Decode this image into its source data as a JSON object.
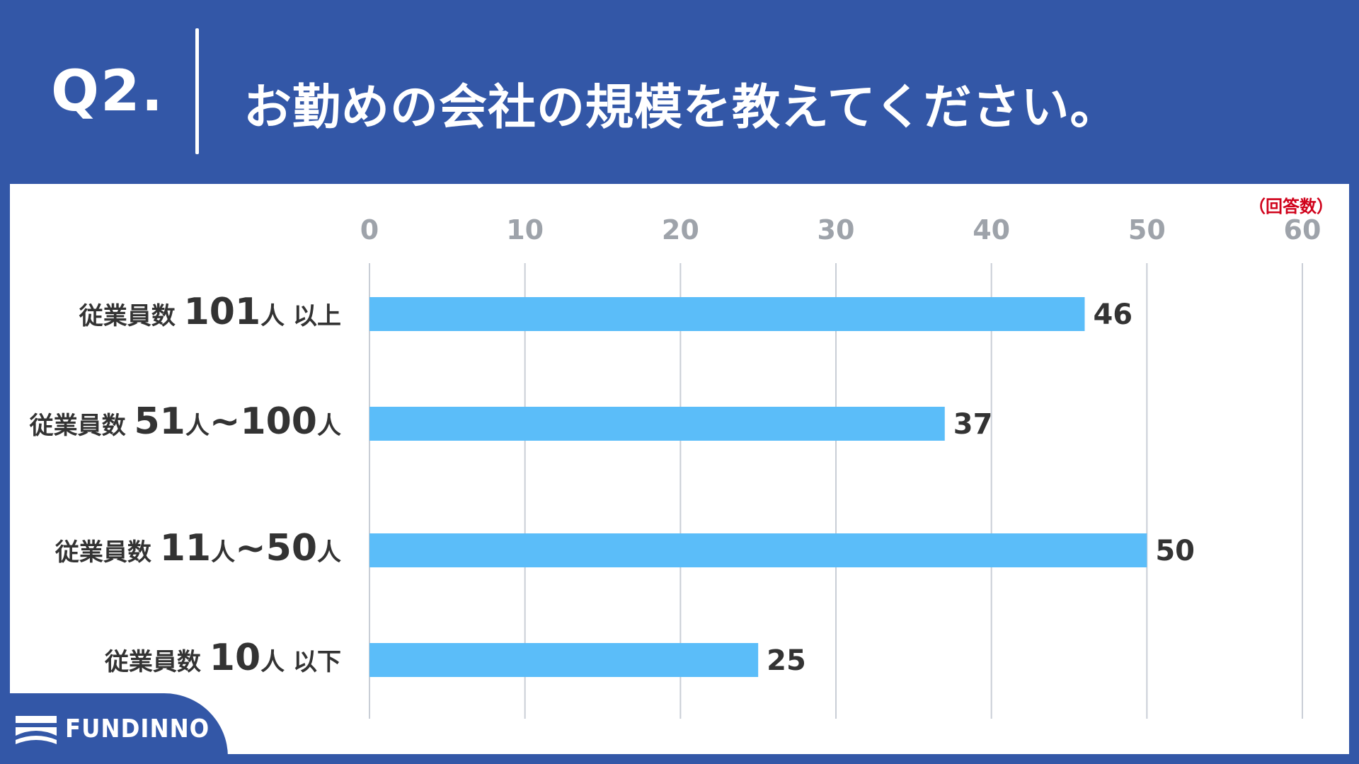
{
  "header": {
    "question_number": "Q2.",
    "title": "お勤めの会社の規模を教えてください。"
  },
  "unit_label": "（回答数）",
  "logo": {
    "text": "FUNDINNO"
  },
  "colors": {
    "background": "#3357a7",
    "bar": "#5bbdf9",
    "grid": "#c9ced6",
    "tick": "#9ea3aa",
    "label": "#333333",
    "unit": "#d0021b"
  },
  "chart_data": {
    "type": "bar",
    "orientation": "horizontal",
    "categories": [
      [
        {
          "t": "従業員数 ",
          "s": "n"
        },
        {
          "t": "101",
          "s": "b"
        },
        {
          "t": "人 以上",
          "s": "n"
        }
      ],
      [
        {
          "t": "従業員数 ",
          "s": "n"
        },
        {
          "t": "51",
          "s": "b"
        },
        {
          "t": "人",
          "s": "n"
        },
        {
          "t": "~100",
          "s": "b"
        },
        {
          "t": "人",
          "s": "n"
        }
      ],
      [
        {
          "t": "従業員数 ",
          "s": "n"
        },
        {
          "t": "11",
          "s": "b"
        },
        {
          "t": "人",
          "s": "n"
        },
        {
          "t": "~50",
          "s": "b"
        },
        {
          "t": "人",
          "s": "n"
        }
      ],
      [
        {
          "t": "従業員数 ",
          "s": "n"
        },
        {
          "t": "10",
          "s": "b"
        },
        {
          "t": "人 以下",
          "s": "n"
        }
      ]
    ],
    "values": [
      46,
      37,
      50,
      25
    ],
    "value_labels": [
      "46",
      "37",
      "50",
      "25"
    ],
    "xlim": [
      0,
      60
    ],
    "xticks": [
      "0",
      "10",
      "20",
      "30",
      "40",
      "50",
      "60"
    ],
    "axis_position": "top",
    "grid": true
  }
}
